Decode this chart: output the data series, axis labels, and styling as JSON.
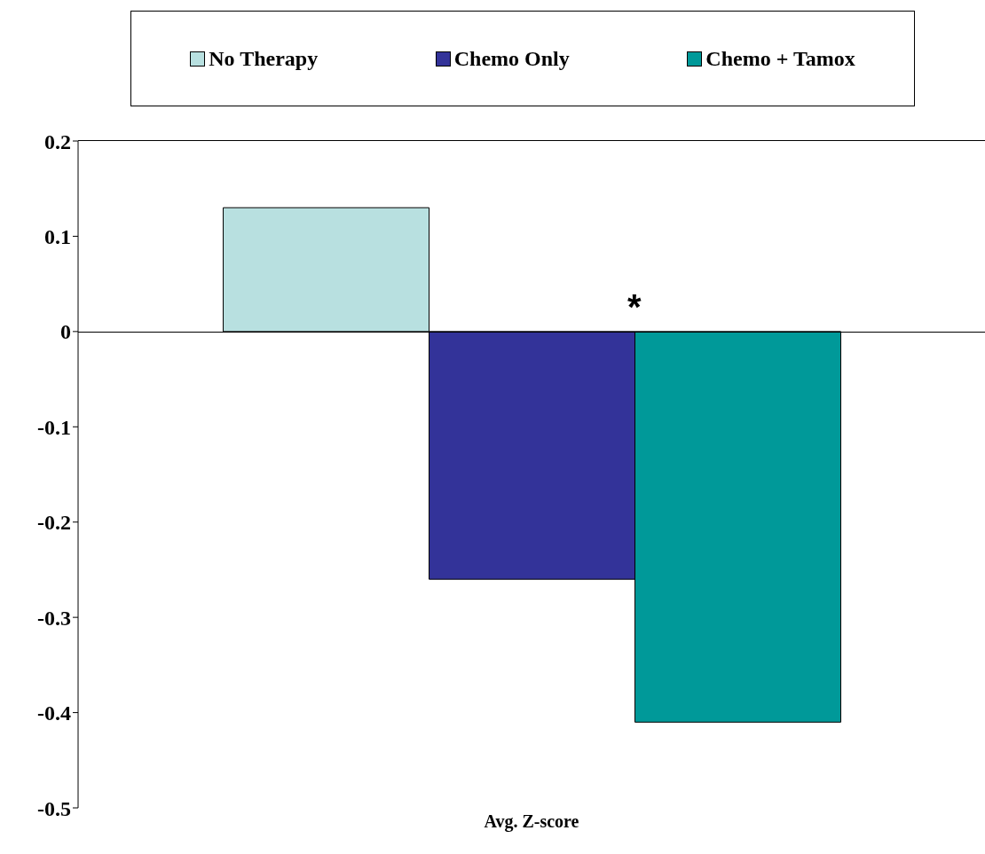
{
  "chart_data": {
    "type": "bar",
    "categories": [
      "Avg. Z-score"
    ],
    "series": [
      {
        "name": "No Therapy",
        "color": "#b8e0e0",
        "values": [
          0.13
        ]
      },
      {
        "name": "Chemo Only",
        "color": "#333399",
        "values": [
          -0.26
        ]
      },
      {
        "name": "Chemo + Tamox",
        "color": "#009999",
        "values": [
          -0.41
        ]
      }
    ],
    "ylim": [
      -0.5,
      0.2
    ],
    "yticks": [
      -0.5,
      -0.4,
      -0.3,
      -0.2,
      -0.1,
      0,
      0.1,
      0.2
    ],
    "legend": "top",
    "annotations": [
      "*"
    ]
  }
}
